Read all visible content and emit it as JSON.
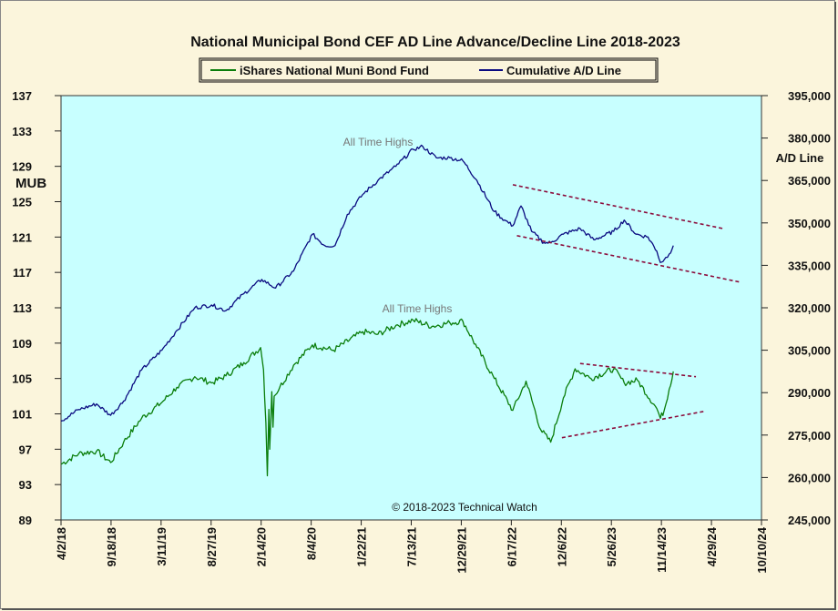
{
  "chart_data": {
    "type": "line",
    "title": "National Municipal Bond CEF AD Line Advance/Decline Line 2018-2023",
    "copyright": "© 2018-2023 Technical Watch",
    "y_left_label": "MUB",
    "y_right_label": "A/D Line",
    "annotations": [
      "All Time Highs",
      "All Time Highs"
    ],
    "legend_position": "top-center",
    "grid": false,
    "x_ticks": [
      "4/2/18",
      "9/18/18",
      "3/11/19",
      "8/27/19",
      "2/14/20",
      "8/4/20",
      "1/22/21",
      "7/13/21",
      "12/29/21",
      "6/17/22",
      "12/6/22",
      "5/26/23",
      "11/14/23",
      "4/29/24",
      "10/10/24"
    ],
    "y_left_ticks": [
      "137",
      "133",
      "129",
      "125",
      "121",
      "117",
      "113",
      "109",
      "105",
      "101",
      "97",
      "93",
      "89"
    ],
    "y_right_ticks": [
      "395,000",
      "380,000",
      "365,000",
      "350,000",
      "335,000",
      "320,000",
      "305,000",
      "290,000",
      "275,000",
      "260,000",
      "245,000"
    ],
    "y_left_range": [
      89,
      137
    ],
    "y_right_range": [
      245000,
      395000
    ],
    "series": [
      {
        "name": "iShares National Muni Bond Fund",
        "axis": "left",
        "color": "#0a7d0a",
        "x": [
          "4/2/18",
          "6/1/18",
          "8/1/18",
          "9/18/18",
          "11/1/18",
          "1/1/19",
          "3/11/19",
          "5/1/19",
          "7/1/19",
          "8/27/19",
          "10/15/19",
          "12/15/19",
          "2/10/20",
          "2/20/20",
          "2/28/20",
          "3/4/20",
          "3/9/20",
          "3/12/20",
          "3/16/20",
          "3/19/20",
          "3/23/20",
          "3/27/20",
          "4/15/20",
          "6/1/20",
          "8/4/20",
          "10/15/20",
          "1/22/21",
          "3/15/21",
          "5/15/21",
          "7/13/21",
          "9/15/21",
          "11/15/21",
          "12/29/21",
          "2/15/22",
          "4/15/22",
          "6/17/22",
          "8/1/22",
          "9/20/22",
          "10/24/22",
          "12/6/22",
          "1/15/23",
          "3/10/23",
          "5/26/23",
          "7/1/23",
          "8/15/23",
          "10/20/23",
          "11/1/23",
          "11/14/23",
          "12/1/23",
          "12/15/23"
        ],
        "values": [
          95.3,
          96.5,
          96.8,
          95.5,
          97.8,
          100.5,
          102.3,
          104.0,
          105.2,
          104.5,
          105.3,
          106.8,
          108.5,
          106.0,
          100.0,
          94.0,
          101.5,
          97.0,
          100.5,
          103.5,
          99.5,
          103.0,
          104.0,
          106.5,
          108.8,
          108.2,
          110.3,
          110.0,
          111.0,
          111.6,
          110.9,
          111.3,
          111.5,
          108.5,
          105.0,
          101.4,
          104.7,
          99.2,
          97.8,
          102.8,
          106.1,
          105.0,
          106.1,
          104.5,
          104.8,
          101.6,
          100.5,
          101.4,
          103.8,
          105.8
        ]
      },
      {
        "name": "Cumulative A/D Line",
        "axis": "right",
        "color": "#0a0a80",
        "x": [
          "4/2/18",
          "6/1/18",
          "8/1/18",
          "9/18/18",
          "11/1/18",
          "1/1/19",
          "3/11/19",
          "5/1/19",
          "7/1/19",
          "8/27/19",
          "10/15/19",
          "12/15/19",
          "2/14/20",
          "4/1/20",
          "6/1/20",
          "8/4/20",
          "9/15/20",
          "10/20/20",
          "12/1/20",
          "1/22/21",
          "3/15/21",
          "5/15/21",
          "7/13/21",
          "8/15/21",
          "9/30/21",
          "11/15/21",
          "12/29/21",
          "2/15/22",
          "4/15/22",
          "5/20/22",
          "6/17/22",
          "7/15/22",
          "8/20/22",
          "10/1/22",
          "10/24/22",
          "12/6/22",
          "2/1/23",
          "3/20/23",
          "5/26/23",
          "7/1/23",
          "8/10/23",
          "9/20/23",
          "10/20/23",
          "11/1/23",
          "11/14/23",
          "12/1/23",
          "12/15/23"
        ],
        "values": [
          280000,
          284000,
          286000,
          282000,
          287000,
          298000,
          305000,
          312000,
          320000,
          321000,
          319000,
          325000,
          330000,
          327000,
          333000,
          346000,
          342000,
          342000,
          353000,
          360000,
          365000,
          370000,
          376000,
          377000,
          373000,
          373000,
          372000,
          365000,
          354000,
          351000,
          349000,
          356000,
          347000,
          343000,
          343000,
          346000,
          348000,
          344000,
          347000,
          351000,
          346000,
          345000,
          340000,
          336000,
          337000,
          339000,
          342000
        ]
      }
    ],
    "trendlines": [
      {
        "axis": "right",
        "points": [
          [
            "6/17/22",
            363500
          ],
          [
            "6/1/24",
            348000
          ]
        ]
      },
      {
        "axis": "right",
        "points": [
          [
            "7/1/22",
            345500
          ],
          [
            "8/1/24",
            329000
          ]
        ]
      },
      {
        "axis": "left",
        "points": [
          [
            "12/1/22",
            98.3
          ],
          [
            "4/1/24",
            101.3
          ]
        ]
      },
      {
        "axis": "left",
        "points": [
          [
            "2/1/23",
            106.7
          ],
          [
            "3/1/24",
            105.2
          ]
        ]
      }
    ]
  }
}
